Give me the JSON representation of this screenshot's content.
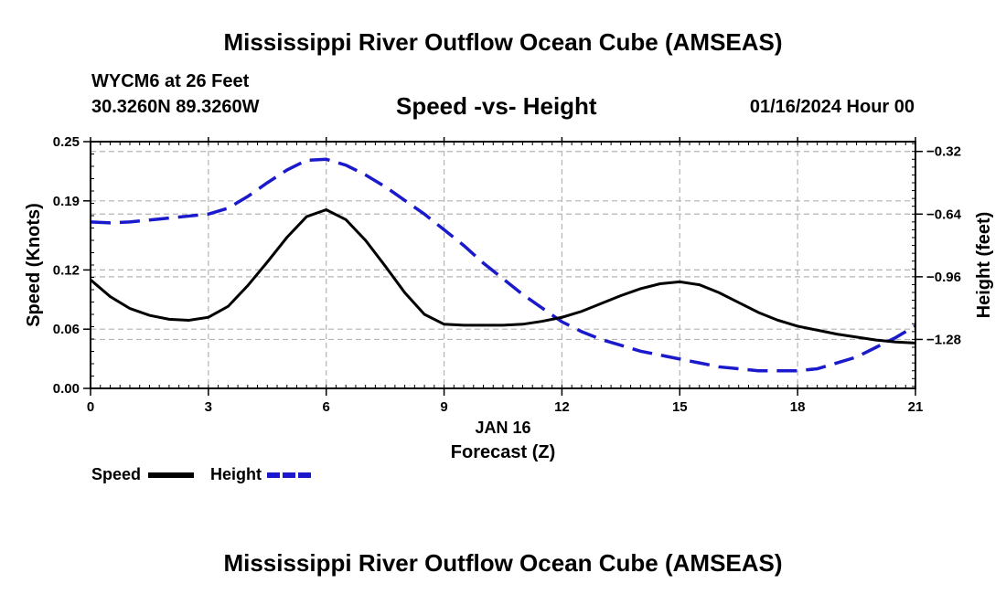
{
  "header": {
    "title": "Mississippi River Outflow Ocean Cube (AMSEAS)",
    "station": "WYCM6 at 26 Feet",
    "coords": "30.3260N  89.3260W",
    "subtitle": "Speed -vs- Height",
    "datetime": "01/16/2024 Hour 00"
  },
  "footer": {
    "title": "Mississippi River Outflow Ocean Cube (AMSEAS)"
  },
  "legend": {
    "speed_label": "Speed",
    "height_label": "Height"
  },
  "colors": {
    "speed": "#000000",
    "height": "#1a1acc",
    "grid": "#b4b4b4"
  },
  "chart_data": {
    "type": "line",
    "title": "Speed -vs- Height",
    "xlabel": "Forecast (Z)",
    "xlabel_date": "JAN 16",
    "ylabel_left": "Speed (Knots)",
    "ylabel_right": "Height (feet)",
    "xlim": [
      0,
      21
    ],
    "ylim_left": [
      0,
      0.25
    ],
    "ylim_right": [
      -1.53,
      -0.27
    ],
    "x_ticks": [
      0,
      3,
      6,
      9,
      12,
      15,
      18,
      21
    ],
    "x_tick_labels": [
      "0",
      "3",
      "6",
      "9",
      "12",
      "15",
      "18",
      "21"
    ],
    "y_left_ticks": [
      0.0,
      0.06,
      0.12,
      0.19,
      0.25
    ],
    "y_left_tick_labels": [
      "0.00",
      "0.06",
      "0.12",
      "0.19",
      "0.25"
    ],
    "y_right_ticks": [
      -0.32,
      -0.64,
      -0.96,
      -1.28
    ],
    "y_right_tick_labels": [
      "−0.32",
      "−0.64",
      "−0.96",
      "−1.28"
    ],
    "grid": true,
    "legend_position": "bottom-left",
    "series": [
      {
        "name": "Speed",
        "axis": "left",
        "style": "solid",
        "x": [
          0,
          0.5,
          1,
          1.5,
          2,
          2.5,
          3,
          3.5,
          4,
          4.5,
          5,
          5.5,
          6,
          6.5,
          7,
          7.5,
          8,
          8.5,
          9,
          9.5,
          10,
          10.5,
          11,
          11.5,
          12,
          12.5,
          13,
          13.5,
          14,
          14.5,
          15,
          15.5,
          16,
          16.5,
          17,
          17.5,
          18,
          18.5,
          19,
          19.5,
          20,
          20.5,
          21
        ],
        "values": [
          0.11,
          0.093,
          0.081,
          0.074,
          0.07,
          0.069,
          0.072,
          0.083,
          0.104,
          0.128,
          0.153,
          0.174,
          0.181,
          0.171,
          0.15,
          0.124,
          0.097,
          0.075,
          0.065,
          0.064,
          0.064,
          0.064,
          0.065,
          0.068,
          0.072,
          0.078,
          0.086,
          0.094,
          0.101,
          0.106,
          0.108,
          0.105,
          0.097,
          0.087,
          0.077,
          0.069,
          0.063,
          0.059,
          0.055,
          0.052,
          0.049,
          0.047,
          0.046
        ]
      },
      {
        "name": "Height",
        "axis": "right",
        "style": "dashed",
        "x": [
          0,
          0.5,
          1,
          1.5,
          2,
          2.5,
          3,
          3.5,
          4,
          4.5,
          5,
          5.5,
          6,
          6.5,
          7,
          7.5,
          8,
          8.5,
          9,
          9.5,
          10,
          10.5,
          11,
          11.5,
          12,
          12.5,
          13,
          13.5,
          14,
          14.5,
          15,
          15.5,
          16,
          16.5,
          17,
          17.5,
          18,
          18.5,
          19,
          19.5,
          20,
          20.5,
          21
        ],
        "values": [
          -0.68,
          -0.685,
          -0.68,
          -0.67,
          -0.66,
          -0.65,
          -0.64,
          -0.61,
          -0.55,
          -0.48,
          -0.415,
          -0.365,
          -0.36,
          -0.39,
          -0.44,
          -0.5,
          -0.57,
          -0.64,
          -0.72,
          -0.8,
          -0.89,
          -0.97,
          -1.05,
          -1.12,
          -1.19,
          -1.24,
          -1.28,
          -1.31,
          -1.34,
          -1.36,
          -1.38,
          -1.4,
          -1.42,
          -1.43,
          -1.44,
          -1.44,
          -1.44,
          -1.43,
          -1.4,
          -1.37,
          -1.32,
          -1.27,
          -1.21
        ]
      }
    ]
  }
}
